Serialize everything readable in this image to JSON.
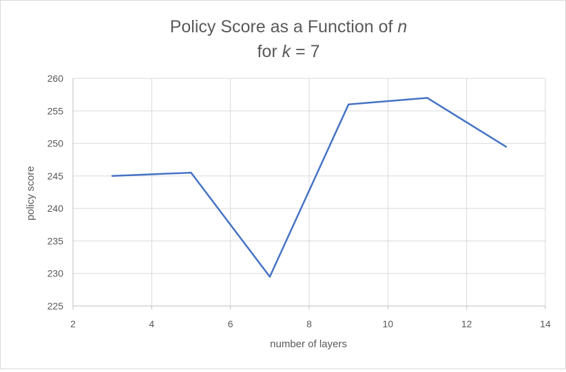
{
  "chart_data": {
    "type": "line",
    "title_line1_prefix": "Policy Score as a Function of ",
    "title_line1_var": "n",
    "title_line2_prefix": "for ",
    "title_line2_var": "k",
    "title_line2_suffix": " = 7",
    "xlabel": "number of layers",
    "ylabel": "policy score",
    "xlim": [
      2,
      14
    ],
    "ylim": [
      225,
      260
    ],
    "xticks": [
      "2",
      "4",
      "6",
      "8",
      "10",
      "12",
      "14"
    ],
    "yticks": [
      "225",
      "230",
      "235",
      "240",
      "245",
      "250",
      "255",
      "260"
    ],
    "grid": true,
    "series": [
      {
        "x": [
          3,
          5,
          7,
          9,
          11,
          13
        ],
        "values": [
          245.0,
          245.5,
          229.5,
          256.0,
          257.0,
          249.5
        ],
        "color": "#4472c4"
      }
    ]
  }
}
